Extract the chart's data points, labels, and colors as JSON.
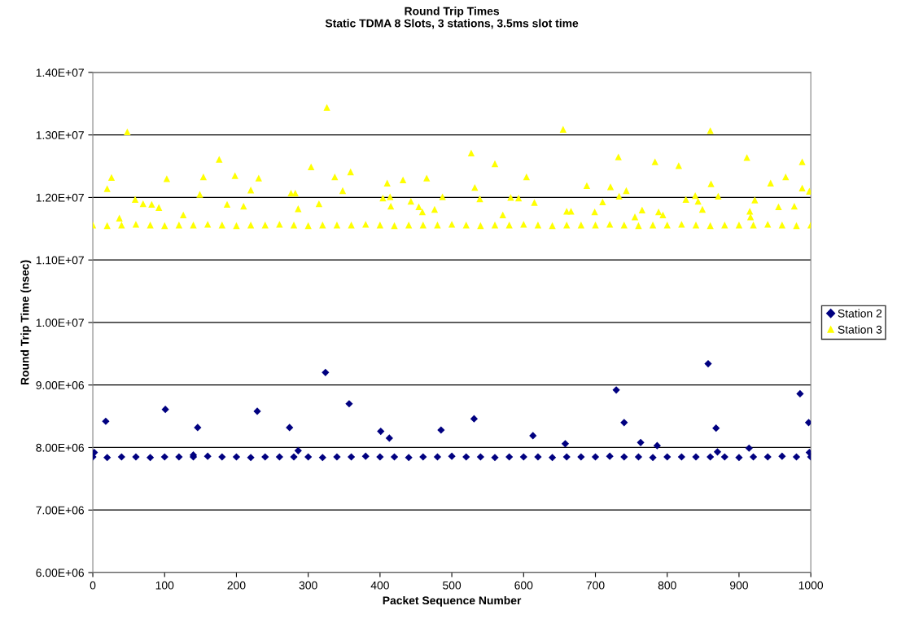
{
  "chart_data": {
    "type": "scatter",
    "title": "Round Trip Times\nStatic TDMA 8 Slots, 3 stations, 3.5ms slot time",
    "xlabel": "Packet Sequence Number",
    "ylabel": "Round Trip Time (nsec)",
    "xlim": [
      0,
      1000
    ],
    "xticks": [
      0,
      100,
      200,
      300,
      400,
      500,
      600,
      700,
      800,
      900,
      1000
    ],
    "ylim": [
      6000000,
      14000000
    ],
    "yticks": [
      {
        "value": 6000000,
        "label": "6.00E+06"
      },
      {
        "value": 7000000,
        "label": "7.00E+06"
      },
      {
        "value": 8000000,
        "label": "8.00E+06"
      },
      {
        "value": 9000000,
        "label": "9.00E+06"
      },
      {
        "value": 10000000,
        "label": "1.00E+07"
      },
      {
        "value": 11000000,
        "label": "1.10E+07"
      },
      {
        "value": 12000000,
        "label": "1.20E+07"
      },
      {
        "value": 13000000,
        "label": "1.30E+07"
      },
      {
        "value": 14000000,
        "label": "1.40E+07"
      }
    ],
    "grid": "y",
    "legend": "right",
    "series": [
      {
        "name": "Station 2",
        "color": "#000080",
        "marker": "diamond",
        "x": [
          0,
          20,
          40,
          60,
          80,
          100,
          120,
          140,
          160,
          180,
          200,
          220,
          240,
          260,
          280,
          300,
          320,
          340,
          360,
          380,
          400,
          420,
          440,
          460,
          480,
          500,
          520,
          540,
          560,
          580,
          600,
          620,
          640,
          660,
          680,
          700,
          720,
          740,
          760,
          780,
          800,
          820,
          840,
          860,
          880,
          900,
          920,
          940,
          960,
          980,
          1000,
          2,
          140,
          870,
          998,
          18,
          101,
          146,
          229,
          274,
          286,
          324,
          357,
          401,
          413,
          485,
          531,
          613,
          658,
          729,
          740,
          763,
          786,
          857,
          868,
          914,
          985,
          997
        ],
        "values": [
          7850000,
          7840000,
          7850000,
          7850000,
          7840000,
          7850000,
          7850000,
          7850000,
          7860000,
          7850000,
          7850000,
          7840000,
          7850000,
          7850000,
          7850000,
          7850000,
          7840000,
          7850000,
          7850000,
          7860000,
          7850000,
          7850000,
          7840000,
          7850000,
          7850000,
          7860000,
          7850000,
          7850000,
          7840000,
          7850000,
          7850000,
          7850000,
          7840000,
          7850000,
          7850000,
          7850000,
          7860000,
          7850000,
          7850000,
          7840000,
          7850000,
          7850000,
          7850000,
          7850000,
          7850000,
          7840000,
          7850000,
          7850000,
          7860000,
          7850000,
          7850000,
          7920000,
          7880000,
          7930000,
          7920000,
          8420000,
          8610000,
          8320000,
          8580000,
          8320000,
          7950000,
          9200000,
          8700000,
          8260000,
          8150000,
          8280000,
          8460000,
          8190000,
          8060000,
          8920000,
          8400000,
          8080000,
          8030000,
          9340000,
          8310000,
          7990000,
          8860000,
          8400000
        ]
      },
      {
        "name": "Station 3",
        "color": "#ffff00",
        "marker": "triangle",
        "x": [
          0,
          20,
          40,
          60,
          80,
          100,
          120,
          140,
          160,
          180,
          200,
          220,
          240,
          260,
          280,
          300,
          320,
          340,
          360,
          380,
          400,
          420,
          440,
          460,
          480,
          500,
          520,
          540,
          560,
          580,
          600,
          620,
          640,
          660,
          680,
          700,
          720,
          740,
          760,
          780,
          800,
          820,
          840,
          860,
          880,
          900,
          920,
          940,
          960,
          980,
          1000,
          48,
          20,
          26,
          59,
          70,
          82,
          92,
          37,
          103,
          126,
          149,
          154,
          176,
          187,
          198,
          210,
          220,
          231,
          276,
          282,
          286,
          315,
          304,
          326,
          337,
          348,
          359,
          404,
          410,
          414,
          415,
          432,
          443,
          454,
          459,
          465,
          476,
          487,
          527,
          532,
          539,
          560,
          571,
          582,
          593,
          604,
          615,
          655,
          660,
          666,
          688,
          699,
          710,
          721,
          732,
          733,
          743,
          755,
          765,
          783,
          788,
          794,
          816,
          826,
          839,
          843,
          849,
          860,
          861,
          871,
          911,
          915,
          916,
          922,
          944,
          955,
          965,
          977,
          988,
          988,
          998
        ],
        "values": [
          11560000,
          11550000,
          11560000,
          11570000,
          11560000,
          11550000,
          11560000,
          11560000,
          11570000,
          11560000,
          11550000,
          11560000,
          11560000,
          11570000,
          11560000,
          11550000,
          11560000,
          11560000,
          11560000,
          11570000,
          11560000,
          11550000,
          11560000,
          11560000,
          11560000,
          11570000,
          11560000,
          11550000,
          11560000,
          11560000,
          11570000,
          11560000,
          11550000,
          11560000,
          11560000,
          11560000,
          11570000,
          11560000,
          11550000,
          11560000,
          11560000,
          11570000,
          11560000,
          11550000,
          11560000,
          11560000,
          11560000,
          11570000,
          11560000,
          11550000,
          11560000,
          13050000,
          12140000,
          12320000,
          11970000,
          11900000,
          11890000,
          11840000,
          11670000,
          12300000,
          11720000,
          12050000,
          12330000,
          12610000,
          11890000,
          12350000,
          11860000,
          12120000,
          12310000,
          12070000,
          12070000,
          11820000,
          11900000,
          12490000,
          13440000,
          12330000,
          12110000,
          12410000,
          11990000,
          12230000,
          12010000,
          11860000,
          12280000,
          11940000,
          11850000,
          11770000,
          12310000,
          11810000,
          12010000,
          12710000,
          12160000,
          11980000,
          12540000,
          11720000,
          12000000,
          11990000,
          12330000,
          11920000,
          13090000,
          11780000,
          11780000,
          12190000,
          11770000,
          11930000,
          12170000,
          12650000,
          12020000,
          12110000,
          11690000,
          11800000,
          12570000,
          11770000,
          11720000,
          12510000,
          11970000,
          12030000,
          11940000,
          11810000,
          13070000,
          12220000,
          12020000,
          12640000,
          11780000,
          11690000,
          11960000,
          12230000,
          11850000,
          12330000,
          11860000,
          12570000,
          12150000,
          12100000
        ]
      }
    ]
  }
}
